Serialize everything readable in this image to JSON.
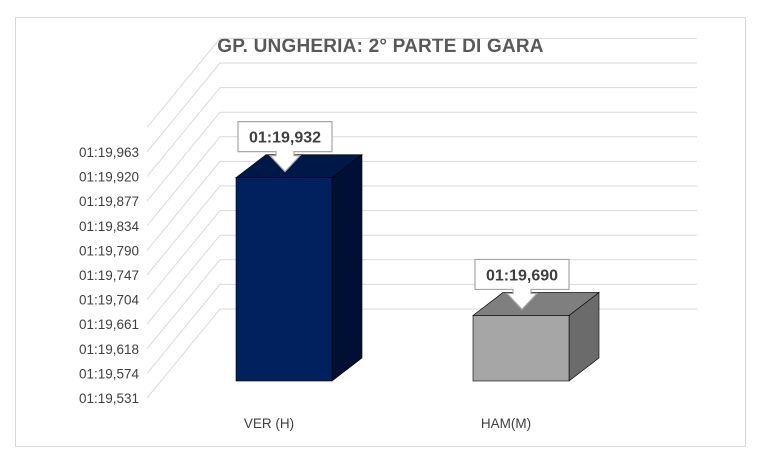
{
  "chart_data": {
    "type": "bar",
    "title": "GP. UNGHERIA: 2° PARTE DI GARA",
    "categories": [
      "VER (H)",
      "HAM(M)"
    ],
    "values": [
      "01:19,932",
      "01:19,690"
    ],
    "value_seconds": [
      79.932,
      79.69
    ],
    "data_labels": [
      "01:19,932",
      "01:19,690"
    ],
    "y_ticks": [
      "01:19,531",
      "01:19,574",
      "01:19,618",
      "01:19,661",
      "01:19,704",
      "01:19,747",
      "01:19,790",
      "01:19,834",
      "01:19,877",
      "01:19,920",
      "01:19,963"
    ],
    "ylim": [
      79.531,
      79.963
    ],
    "ylim_labels": [
      "01:19,531",
      "01:19,963"
    ],
    "grid": true,
    "legend": "none",
    "style": "3d-column",
    "colors": {
      "bar_front": [
        "#00215e",
        "#a6a6a6"
      ],
      "bar_side": [
        "#001035",
        "#6b6b6b"
      ],
      "bar_top": [
        "#001848",
        "#7f7f7f"
      ],
      "grid": "#d9d9d9"
    }
  }
}
